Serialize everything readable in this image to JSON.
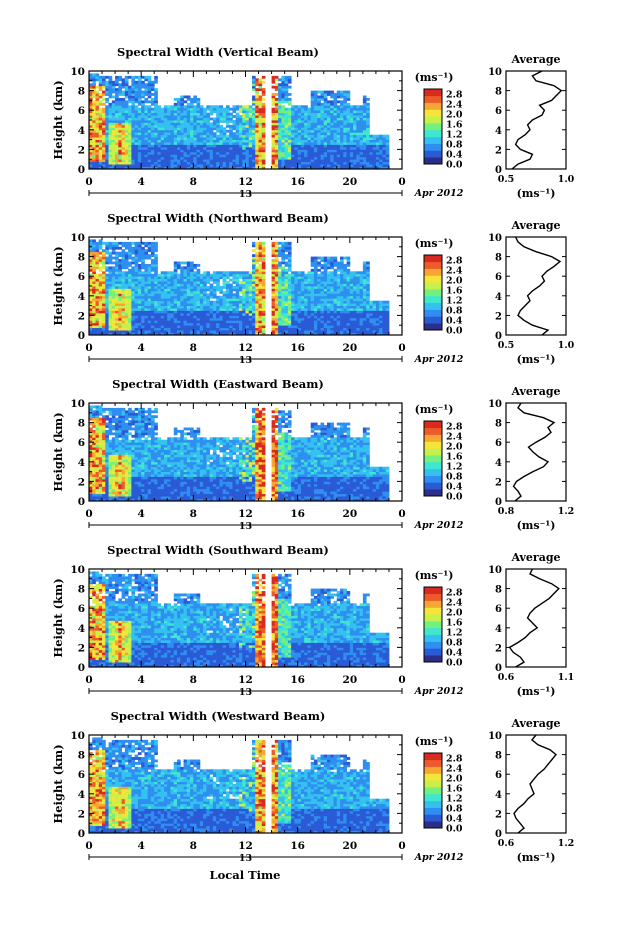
{
  "figure": {
    "date_label": "Apr 2012",
    "day_label": "13",
    "xlabel": "Local Time",
    "colorbar_unit": "(ms⁻¹)",
    "colormap": [
      "#2b2f8a",
      "#2a5ad6",
      "#2f8ff0",
      "#35c1f0",
      "#3fe6d0",
      "#73f07f",
      "#c8f04a",
      "#f5e43a",
      "#f7a631",
      "#ee5b2a",
      "#d92a22"
    ]
  },
  "chart_data": [
    {
      "type": "heatmap",
      "title": "Spectral Width (Vertical Beam)",
      "xlabel": "",
      "ylabel": "Height (km)",
      "x_ticks": [
        "0",
        "4",
        "8",
        "12",
        "16",
        "20",
        "0"
      ],
      "xlim": [
        0,
        24
      ],
      "y_ticks": [
        "0",
        "2",
        "4",
        "6",
        "8",
        "10"
      ],
      "ylim": [
        0,
        10
      ],
      "colorbar": {
        "ticks": [
          "0.0",
          "0.4",
          "0.8",
          "1.2",
          "1.6",
          "2.0",
          "2.4",
          "2.8"
        ],
        "range": [
          0,
          3.0
        ]
      },
      "average": {
        "title": "Average",
        "xlabel": "(ms⁻¹)",
        "x_ticks": [
          "0.5",
          "1.0"
        ],
        "xlim": [
          0.5,
          1.0
        ],
        "height": [
          0,
          0.5,
          1,
          1.5,
          2,
          2.5,
          3,
          3.5,
          4,
          4.5,
          5,
          5.5,
          6,
          6.5,
          7,
          7.5,
          8,
          8.5,
          9,
          9.5,
          10
        ],
        "value": [
          0.55,
          0.6,
          0.7,
          0.72,
          0.62,
          0.58,
          0.6,
          0.66,
          0.7,
          0.68,
          0.72,
          0.8,
          0.82,
          0.78,
          0.88,
          0.92,
          0.96,
          0.9,
          0.75,
          0.72,
          0.8
        ]
      }
    },
    {
      "type": "heatmap",
      "title": "Spectral Width (Northward Beam)",
      "xlabel": "",
      "ylabel": "Height (km)",
      "x_ticks": [
        "0",
        "4",
        "8",
        "12",
        "16",
        "20",
        "0"
      ],
      "xlim": [
        0,
        24
      ],
      "y_ticks": [
        "0",
        "2",
        "4",
        "6",
        "8",
        "10"
      ],
      "ylim": [
        0,
        10
      ],
      "colorbar": {
        "ticks": [
          "0.0",
          "0.4",
          "0.8",
          "1.2",
          "1.6",
          "2.0",
          "2.4",
          "2.8"
        ],
        "range": [
          0,
          3.0
        ]
      },
      "average": {
        "title": "Average",
        "xlabel": "(ms⁻¹)",
        "x_ticks": [
          "0.5",
          "1.0"
        ],
        "xlim": [
          0.5,
          1.0
        ],
        "height": [
          0,
          0.5,
          1,
          1.5,
          2,
          2.5,
          3,
          3.5,
          4,
          4.5,
          5,
          5.5,
          6,
          6.5,
          7,
          7.5,
          8,
          8.5,
          9,
          9.5,
          10
        ],
        "value": [
          0.8,
          0.85,
          0.72,
          0.65,
          0.6,
          0.62,
          0.66,
          0.7,
          0.68,
          0.72,
          0.78,
          0.82,
          0.8,
          0.84,
          0.9,
          0.95,
          0.88,
          0.75,
          0.65,
          0.6,
          0.58
        ]
      }
    },
    {
      "type": "heatmap",
      "title": "Spectral Width (Eastward Beam)",
      "xlabel": "",
      "ylabel": "Height (km)",
      "x_ticks": [
        "0",
        "4",
        "8",
        "12",
        "16",
        "20",
        "0"
      ],
      "xlim": [
        0,
        24
      ],
      "y_ticks": [
        "0",
        "2",
        "4",
        "6",
        "8",
        "10"
      ],
      "ylim": [
        0,
        10
      ],
      "colorbar": {
        "ticks": [
          "0.0",
          "0.4",
          "0.8",
          "1.2",
          "1.6",
          "2.0",
          "2.4",
          "2.8"
        ],
        "range": [
          0,
          3.0
        ]
      },
      "average": {
        "title": "Average",
        "xlabel": "(ms⁻¹)",
        "x_ticks": [
          "0.8",
          "1.2"
        ],
        "xlim": [
          0.8,
          1.2
        ],
        "height": [
          0,
          0.5,
          1,
          1.5,
          2,
          2.5,
          3,
          3.5,
          4,
          4.5,
          5,
          5.5,
          6,
          6.5,
          7,
          7.5,
          8,
          8.5,
          9,
          9.5,
          10
        ],
        "value": [
          0.86,
          0.9,
          0.88,
          0.85,
          0.87,
          0.92,
          0.98,
          1.05,
          1.08,
          1.02,
          0.98,
          0.95,
          1.0,
          1.06,
          1.1,
          1.08,
          1.12,
          1.05,
          0.92,
          0.88,
          0.9
        ]
      }
    },
    {
      "type": "heatmap",
      "title": "Spectral Width (Southward Beam)",
      "xlabel": "",
      "ylabel": "Height (km)",
      "x_ticks": [
        "0",
        "4",
        "8",
        "12",
        "16",
        "20",
        "0"
      ],
      "xlim": [
        0,
        24
      ],
      "y_ticks": [
        "0",
        "2",
        "4",
        "6",
        "8",
        "10"
      ],
      "ylim": [
        0,
        10
      ],
      "colorbar": {
        "ticks": [
          "0.0",
          "0.4",
          "0.8",
          "1.2",
          "1.6",
          "2.0",
          "2.4",
          "2.8"
        ],
        "range": [
          0,
          3.0
        ]
      },
      "average": {
        "title": "Average",
        "xlabel": "(ms⁻¹)",
        "x_ticks": [
          "0.6",
          "1.1"
        ],
        "xlim": [
          0.6,
          1.1
        ],
        "height": [
          0,
          0.5,
          1,
          1.5,
          2,
          2.5,
          3,
          3.5,
          4,
          4.5,
          5,
          5.5,
          6,
          6.5,
          7,
          7.5,
          8,
          8.5,
          9,
          9.5,
          10
        ],
        "value": [
          0.68,
          0.75,
          0.72,
          0.66,
          0.63,
          0.7,
          0.76,
          0.8,
          0.86,
          0.82,
          0.78,
          0.8,
          0.84,
          0.9,
          0.96,
          1.0,
          1.04,
          0.98,
          0.88,
          0.8,
          0.82
        ]
      }
    },
    {
      "type": "heatmap",
      "title": "Spectral Width (Westward Beam)",
      "xlabel": "Local Time",
      "ylabel": "Height (km)",
      "x_ticks": [
        "0",
        "4",
        "8",
        "12",
        "16",
        "20",
        "0"
      ],
      "xlim": [
        0,
        24
      ],
      "y_ticks": [
        "0",
        "2",
        "4",
        "6",
        "8",
        "10"
      ],
      "ylim": [
        0,
        10
      ],
      "colorbar": {
        "ticks": [
          "0.0",
          "0.4",
          "0.8",
          "1.2",
          "1.6",
          "2.0",
          "2.4",
          "2.8"
        ],
        "range": [
          0,
          3.0
        ]
      },
      "average": {
        "title": "Average",
        "xlabel": "(ms⁻¹)",
        "x_ticks": [
          "0.6",
          "1.2"
        ],
        "xlim": [
          0.6,
          1.2
        ],
        "height": [
          0,
          0.5,
          1,
          1.5,
          2,
          2.5,
          3,
          3.5,
          4,
          4.5,
          5,
          5.5,
          6,
          6.5,
          7,
          7.5,
          8,
          8.5,
          9,
          9.5,
          10
        ],
        "value": [
          0.72,
          0.78,
          0.74,
          0.7,
          0.68,
          0.72,
          0.78,
          0.82,
          0.88,
          0.86,
          0.84,
          0.88,
          0.92,
          0.98,
          1.02,
          1.06,
          1.1,
          1.04,
          0.92,
          0.86,
          0.9
        ]
      }
    }
  ]
}
